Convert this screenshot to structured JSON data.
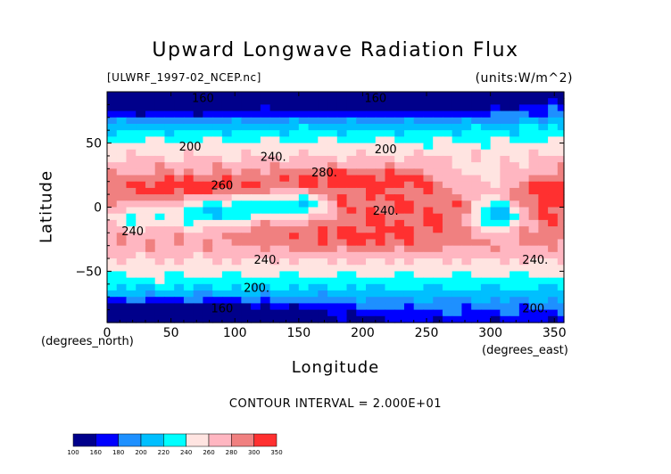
{
  "chart_data": {
    "type": "heatmap",
    "title": "Upward Longwave Radiation Flux",
    "subtitle_left": "[ULWRF_1997-02_NCEP.nc]",
    "subtitle_right": "(units:W/m^2)",
    "xlabel": "Longitude",
    "ylabel": "Latitude",
    "x_unit_label": "(degrees_east)",
    "y_unit_label": "(degrees_north)",
    "x_ticks": [
      0,
      50,
      100,
      150,
      200,
      250,
      300,
      350
    ],
    "y_ticks": [
      50,
      0,
      -50
    ],
    "xlim": [
      0,
      357.5
    ],
    "ylim": [
      -90,
      90
    ],
    "contour_interval_text": "CONTOUR INTERVAL = 2.000E+01",
    "levels": [
      100,
      160,
      180,
      200,
      220,
      240,
      260,
      280,
      300,
      350
    ],
    "level_colors": [
      "#00008b",
      "#0000ff",
      "#1e90ff",
      "#00bfff",
      "#00ffff",
      "#ffe4e1",
      "#ffb6c1",
      "#f08080",
      "#ff3030"
    ],
    "contour_labels": [
      {
        "text": "160",
        "lon": 75,
        "lat": 82
      },
      {
        "text": "160",
        "lon": 210,
        "lat": 82
      },
      {
        "text": "200",
        "lon": 65,
        "lat": 44
      },
      {
        "text": "200",
        "lon": 218,
        "lat": 42
      },
      {
        "text": "240.",
        "lon": 130,
        "lat": 36
      },
      {
        "text": "280.",
        "lon": 170,
        "lat": 24
      },
      {
        "text": "260",
        "lon": 90,
        "lat": 14
      },
      {
        "text": "240.",
        "lon": 218,
        "lat": -6
      },
      {
        "text": "240",
        "lon": 20,
        "lat": -22
      },
      {
        "text": "240.",
        "lon": 125,
        "lat": -44
      },
      {
        "text": "240.",
        "lon": 335,
        "lat": -44
      },
      {
        "text": "200.",
        "lon": 117,
        "lat": -66
      },
      {
        "text": "200.",
        "lon": 335,
        "lat": -82
      },
      {
        "text": "160",
        "lon": 90,
        "lat": -82
      }
    ]
  }
}
